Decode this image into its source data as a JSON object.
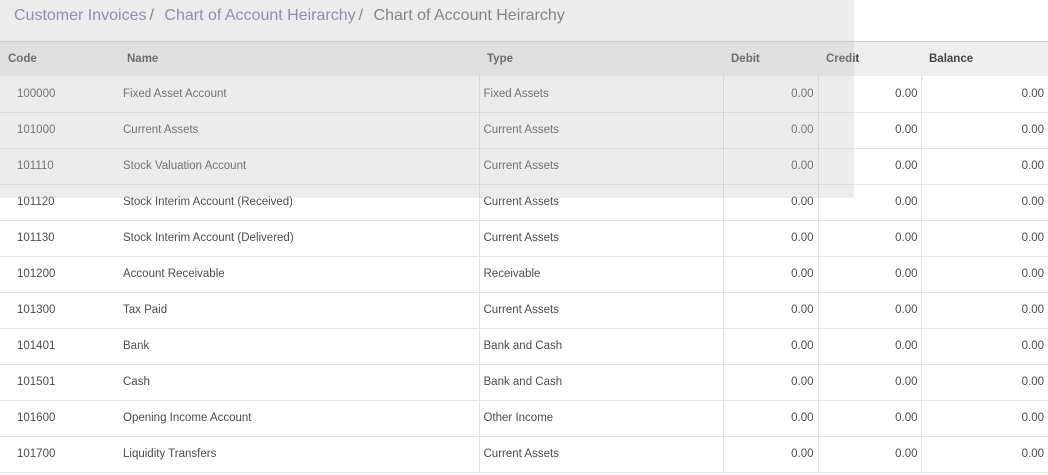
{
  "breadcrumb": {
    "items": [
      "Customer Invoices",
      "Chart of Account Heirarchy"
    ],
    "current": "Chart of Account Heirarchy",
    "separator": "/"
  },
  "table": {
    "headers": {
      "code": "Code",
      "name": "Name",
      "type": "Type",
      "debit": "Debit",
      "credit": "Credit",
      "balance": "Balance"
    },
    "rows": [
      {
        "code": "100000",
        "name": "Fixed Asset Account",
        "type": "Fixed Assets",
        "debit": "0.00",
        "credit": "0.00",
        "balance": "0.00"
      },
      {
        "code": "101000",
        "name": "Current Assets",
        "type": "Current Assets",
        "debit": "0.00",
        "credit": "0.00",
        "balance": "0.00"
      },
      {
        "code": "101110",
        "name": "Stock Valuation Account",
        "type": "Current Assets",
        "debit": "0.00",
        "credit": "0.00",
        "balance": "0.00"
      },
      {
        "code": "101120",
        "name": "Stock Interim Account (Received)",
        "type": "Current Assets",
        "debit": "0.00",
        "credit": "0.00",
        "balance": "0.00"
      },
      {
        "code": "101130",
        "name": "Stock Interim Account (Delivered)",
        "type": "Current Assets",
        "debit": "0.00",
        "credit": "0.00",
        "balance": "0.00"
      },
      {
        "code": "101200",
        "name": "Account Receivable",
        "type": "Receivable",
        "debit": "0.00",
        "credit": "0.00",
        "balance": "0.00"
      },
      {
        "code": "101300",
        "name": "Tax Paid",
        "type": "Current Assets",
        "debit": "0.00",
        "credit": "0.00",
        "balance": "0.00"
      },
      {
        "code": "101401",
        "name": "Bank",
        "type": "Bank and Cash",
        "debit": "0.00",
        "credit": "0.00",
        "balance": "0.00"
      },
      {
        "code": "101501",
        "name": "Cash",
        "type": "Bank and Cash",
        "debit": "0.00",
        "credit": "0.00",
        "balance": "0.00"
      },
      {
        "code": "101600",
        "name": "Opening Income Account",
        "type": "Other Income",
        "debit": "0.00",
        "credit": "0.00",
        "balance": "0.00"
      },
      {
        "code": "101700",
        "name": "Liquidity Transfers",
        "type": "Current Assets",
        "debit": "0.00",
        "credit": "0.00",
        "balance": "0.00"
      }
    ]
  }
}
